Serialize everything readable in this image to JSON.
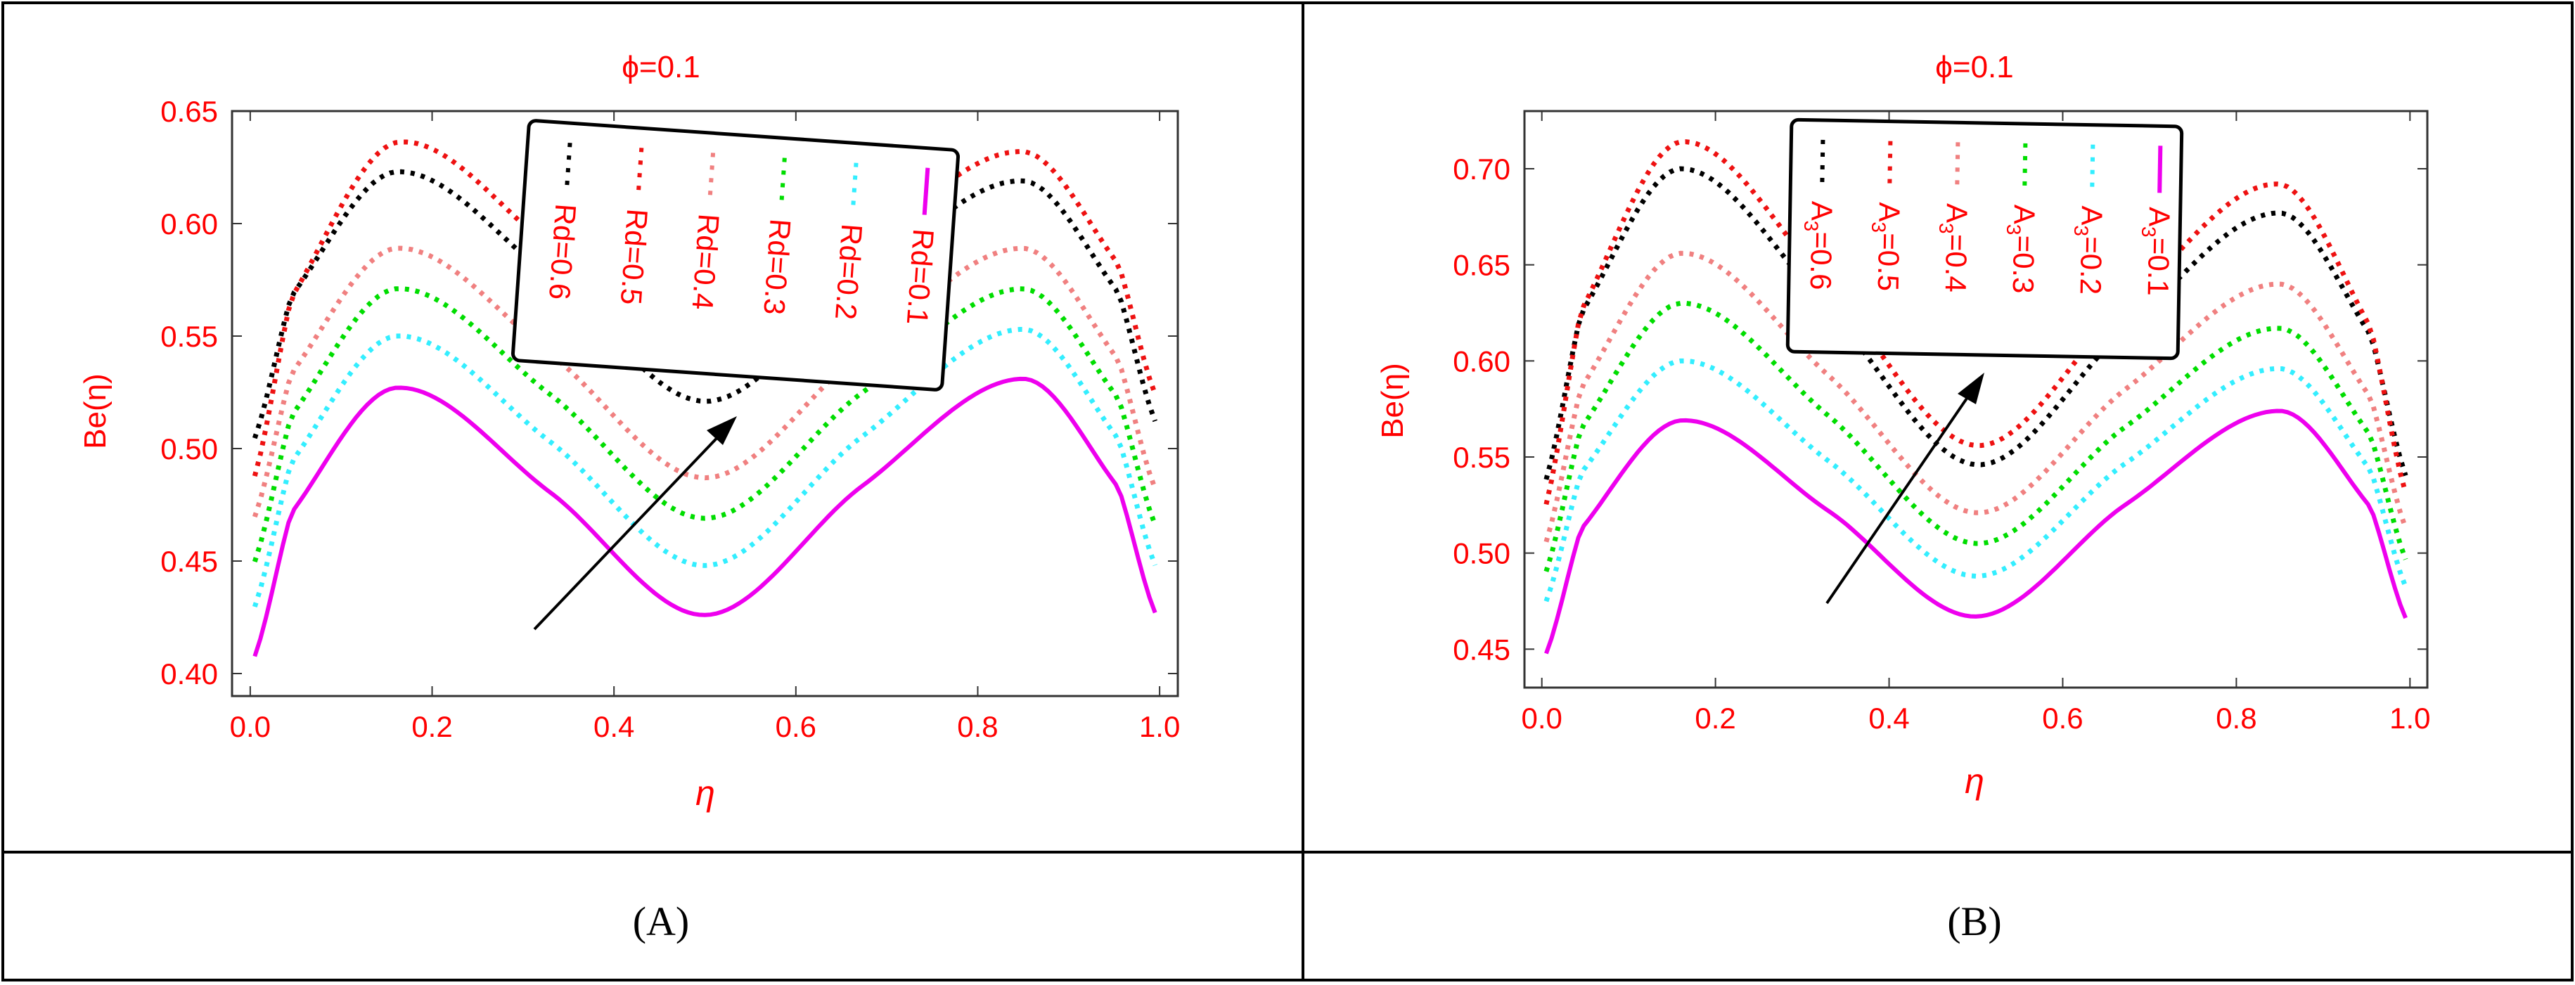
{
  "colors": {
    "text": "#ff0000",
    "frame": "#000000",
    "rd06": "#000000",
    "rd05": "#ee1111",
    "rd04": "#f08080",
    "rd03": "#00dd00",
    "rd02": "#33eeff",
    "rd01": "#ee00ee"
  },
  "captions": [
    "(A)",
    "(B)"
  ],
  "chart_data": [
    {
      "type": "line",
      "panel": "A",
      "title": "ϕ=0.1",
      "xlabel": "η",
      "ylabel": "Be(η)",
      "xlim": [
        -0.02,
        1.02
      ],
      "ylim": [
        0.39,
        0.65
      ],
      "xticks": [
        0.0,
        0.2,
        0.4,
        0.6,
        0.8,
        1.0
      ],
      "xtick_labels": [
        "0.0",
        "0.2",
        "0.4",
        "0.6",
        "0.8",
        "1.0"
      ],
      "yticks": [
        0.4,
        0.45,
        0.5,
        0.55,
        0.6,
        0.65
      ],
      "ytick_labels": [
        "0.40",
        "0.45",
        "0.50",
        "0.55",
        "0.60",
        "0.65"
      ],
      "legend_position": "top-center (rotated labels)",
      "series": [
        {
          "name": "Rd=0.6",
          "style": "dotted",
          "color": "#000000",
          "start": 0.5,
          "peak1": 0.623,
          "min": 0.521,
          "peak2": 0.619,
          "end": 0.508
        },
        {
          "name": "Rd=0.5",
          "style": "dotted",
          "color": "#ee1111",
          "start": 0.482,
          "peak1": 0.636,
          "min": 0.535,
          "peak2": 0.632,
          "end": 0.52
        },
        {
          "name": "Rd=0.4",
          "style": "dotted",
          "color": "#f08080",
          "start": 0.465,
          "peak1": 0.589,
          "min": 0.487,
          "peak2": 0.589,
          "end": 0.478
        },
        {
          "name": "Rd=0.3",
          "style": "dotted",
          "color": "#00dd00",
          "start": 0.445,
          "peak1": 0.571,
          "min": 0.469,
          "peak2": 0.571,
          "end": 0.462
        },
        {
          "name": "Rd=0.2",
          "style": "dotted",
          "color": "#33eeff",
          "start": 0.425,
          "peak1": 0.55,
          "min": 0.448,
          "peak2": 0.553,
          "end": 0.444
        },
        {
          "name": "Rd=0.1",
          "style": "solid",
          "color": "#ee00ee",
          "start": 0.403,
          "peak1": 0.527,
          "min": 0.426,
          "peak2": 0.531,
          "end": 0.423
        }
      ],
      "annotation": "arrow indicating increasing Rd"
    },
    {
      "type": "line",
      "panel": "B",
      "title": "ϕ=0.1",
      "xlabel": "η",
      "ylabel": "Be(η)",
      "xlim": [
        -0.02,
        1.02
      ],
      "ylim": [
        0.43,
        0.73
      ],
      "xticks": [
        0.0,
        0.2,
        0.4,
        0.6,
        0.8,
        1.0
      ],
      "xtick_labels": [
        "0.0",
        "0.2",
        "0.4",
        "0.6",
        "0.8",
        "1.0"
      ],
      "yticks": [
        0.45,
        0.5,
        0.55,
        0.6,
        0.65,
        0.7
      ],
      "ytick_labels": [
        "0.45",
        "0.50",
        "0.55",
        "0.60",
        "0.65",
        "0.70"
      ],
      "legend_position": "top-center (rotated labels)",
      "series": [
        {
          "name": "A3=0.6",
          "label_main": "A",
          "label_sub": "3",
          "label_rest": "=0.6",
          "style": "dotted",
          "color": "#000000",
          "start": 0.532,
          "peak1": 0.7,
          "min": 0.546,
          "peak2": 0.677,
          "end": 0.535
        },
        {
          "name": "A3=0.5",
          "label_main": "A",
          "label_sub": "3",
          "label_rest": "=0.5",
          "style": "dotted",
          "color": "#ee1111",
          "start": 0.518,
          "peak1": 0.714,
          "min": 0.556,
          "peak2": 0.692,
          "end": 0.525
        },
        {
          "name": "A3=0.4",
          "label_main": "A",
          "label_sub": "3",
          "label_rest": "=0.4",
          "style": "dotted",
          "color": "#f08080",
          "start": 0.5,
          "peak1": 0.656,
          "min": 0.521,
          "peak2": 0.64,
          "end": 0.508
        },
        {
          "name": "A3=0.3",
          "label_main": "A",
          "label_sub": "3",
          "label_rest": "=0.3",
          "style": "dotted",
          "color": "#00dd00",
          "start": 0.485,
          "peak1": 0.63,
          "min": 0.505,
          "peak2": 0.617,
          "end": 0.492
        },
        {
          "name": "A3=0.2",
          "label_main": "A",
          "label_sub": "3",
          "label_rest": "=0.2",
          "style": "dotted",
          "color": "#33eeff",
          "start": 0.47,
          "peak1": 0.6,
          "min": 0.488,
          "peak2": 0.596,
          "end": 0.478
        },
        {
          "name": "A3=0.1",
          "label_main": "A",
          "label_sub": "3",
          "label_rest": "=0.1",
          "style": "solid",
          "color": "#ee00ee",
          "start": 0.443,
          "peak1": 0.569,
          "min": 0.467,
          "peak2": 0.574,
          "end": 0.462
        }
      ],
      "annotation": "arrow indicating increasing A3"
    }
  ]
}
